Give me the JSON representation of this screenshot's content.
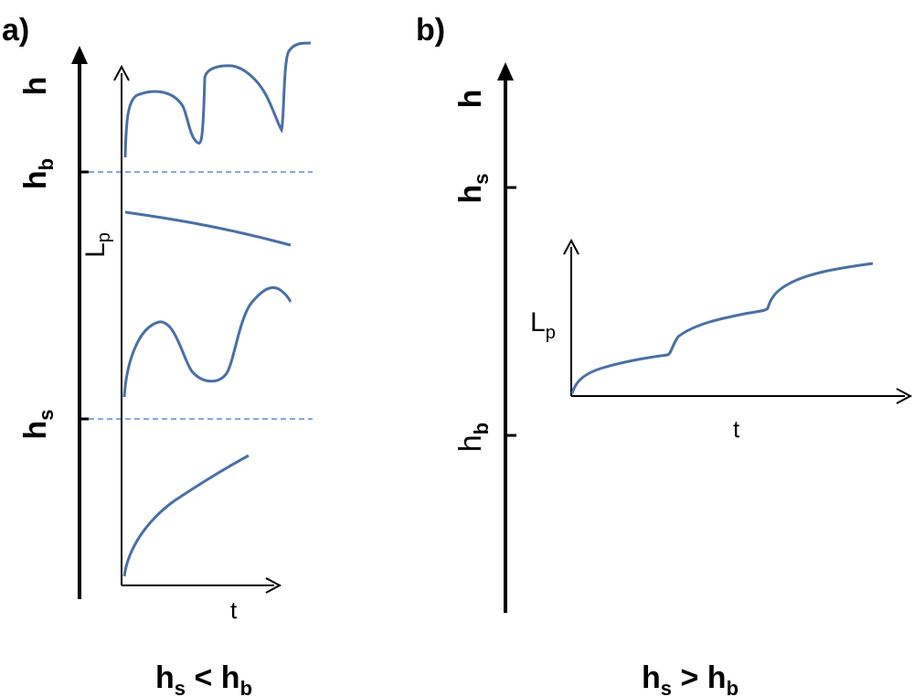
{
  "panel_a": {
    "label": "a)",
    "axis_h": "h",
    "level_upper": "h",
    "level_upper_sub": "b",
    "level_lower": "h",
    "level_lower_sub": "s",
    "inner_y_label": "L",
    "inner_y_label_sub": "p",
    "inner_x_label": "t",
    "caption": {
      "left": "h",
      "left_sub": "s",
      "op": " < ",
      "right": "h",
      "right_sub": "b"
    }
  },
  "panel_b": {
    "label": "b)",
    "axis_h": "h",
    "level_upper": "h",
    "level_upper_sub": "s",
    "level_lower": "h",
    "level_lower_sub": "b",
    "inner_y_label": "L",
    "inner_y_label_sub": "p",
    "inner_x_label": "t",
    "caption": {
      "left": "h",
      "left_sub": "s",
      "op": " > ",
      "right": "h",
      "right_sub": "b"
    }
  },
  "colors": {
    "curve": "#4a6fa5",
    "dashed": "#5b8bd0",
    "axis": "#000000"
  }
}
